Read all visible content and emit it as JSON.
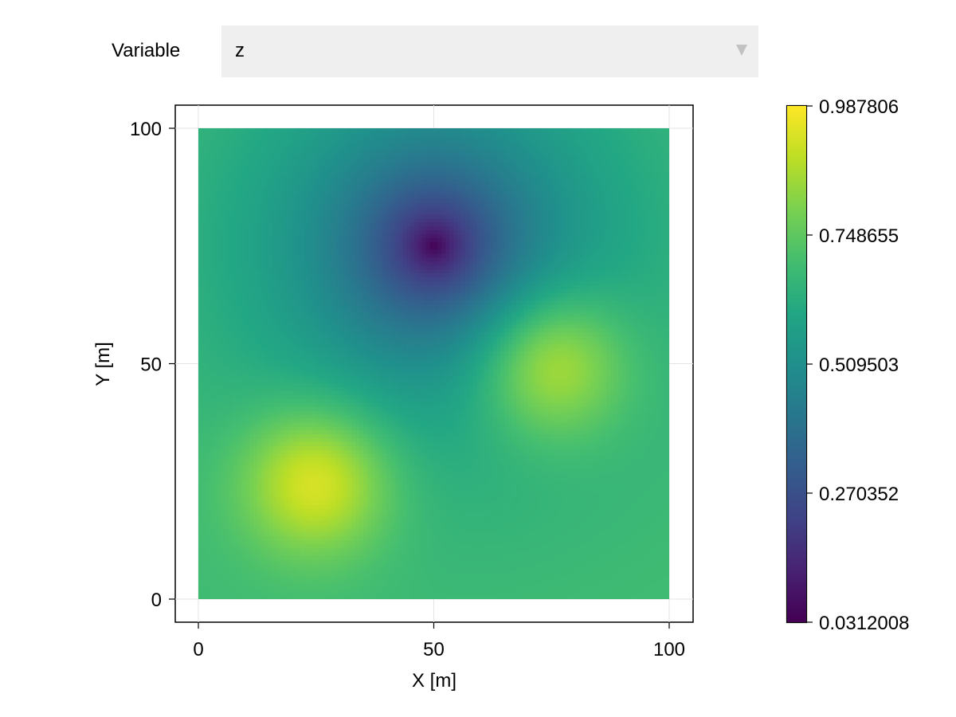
{
  "controls": {
    "variable_label": "Variable",
    "selected_variable": "z",
    "dropdown_icon": "triangle-down-icon"
  },
  "chart_data": {
    "type": "heatmap",
    "title": "",
    "xlabel": "X [m]",
    "ylabel": "Y [m]",
    "xlim": [
      0,
      100
    ],
    "ylim": [
      0,
      100
    ],
    "xticks": [
      "0",
      "50",
      "100"
    ],
    "yticks": [
      "0",
      "50",
      "100"
    ],
    "grid": true,
    "colormap": "viridis",
    "colorbar": {
      "min": 0.0312008,
      "max": 0.987806,
      "ticks": [
        "0.0312008",
        "0.270352",
        "0.509503",
        "0.748655",
        "0.987806"
      ]
    },
    "features": [
      {
        "kind": "peak",
        "x": 25,
        "y": 25,
        "value": 0.98
      },
      {
        "kind": "peak",
        "x": 75,
        "y": 50,
        "value": 0.97
      },
      {
        "kind": "minimum",
        "x": 50,
        "y": 75,
        "value": 0.0312008
      }
    ],
    "background_value": 0.7
  }
}
